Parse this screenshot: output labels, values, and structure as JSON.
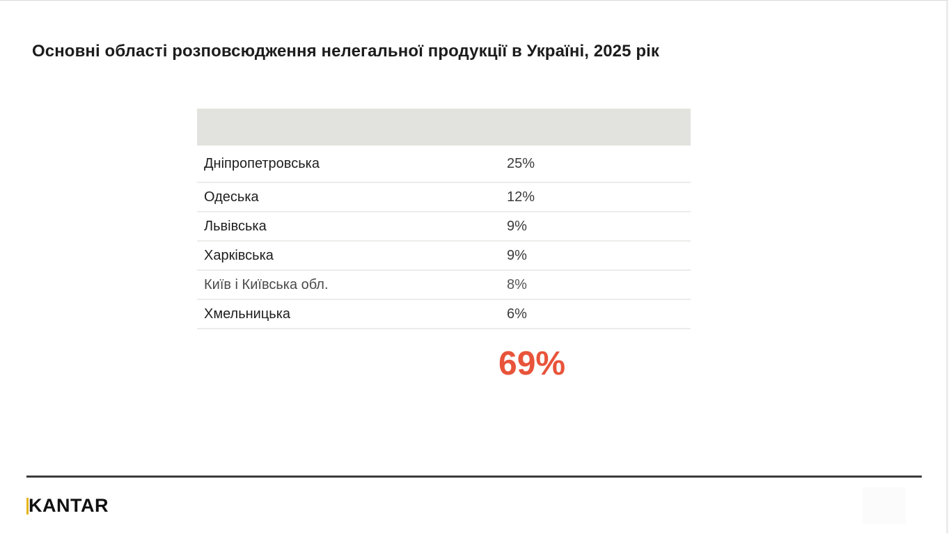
{
  "slide": {
    "title": "Основні області розповсюдження нелегальної продукції в Україні, 2025 рік"
  },
  "table": {
    "header": [
      "",
      ""
    ],
    "rows": [
      {
        "region": "Дніпропетровська",
        "value": "25%"
      },
      {
        "region": "Одеська",
        "value": "12%"
      },
      {
        "region": "Львівська",
        "value": "9%"
      },
      {
        "region": "Харківська",
        "value": "9%"
      },
      {
        "region": "Київ і Київська обл.",
        "value": "8%"
      },
      {
        "region": "Хмельницька",
        "value": "6%"
      }
    ],
    "total": "69%"
  },
  "colors": {
    "total_accent": "#e8543a",
    "header_fill": "#e2e2de",
    "logo_accent": "#e7b416"
  },
  "footer": {
    "logo_first": "K",
    "logo_rest": "ANTAR"
  }
}
